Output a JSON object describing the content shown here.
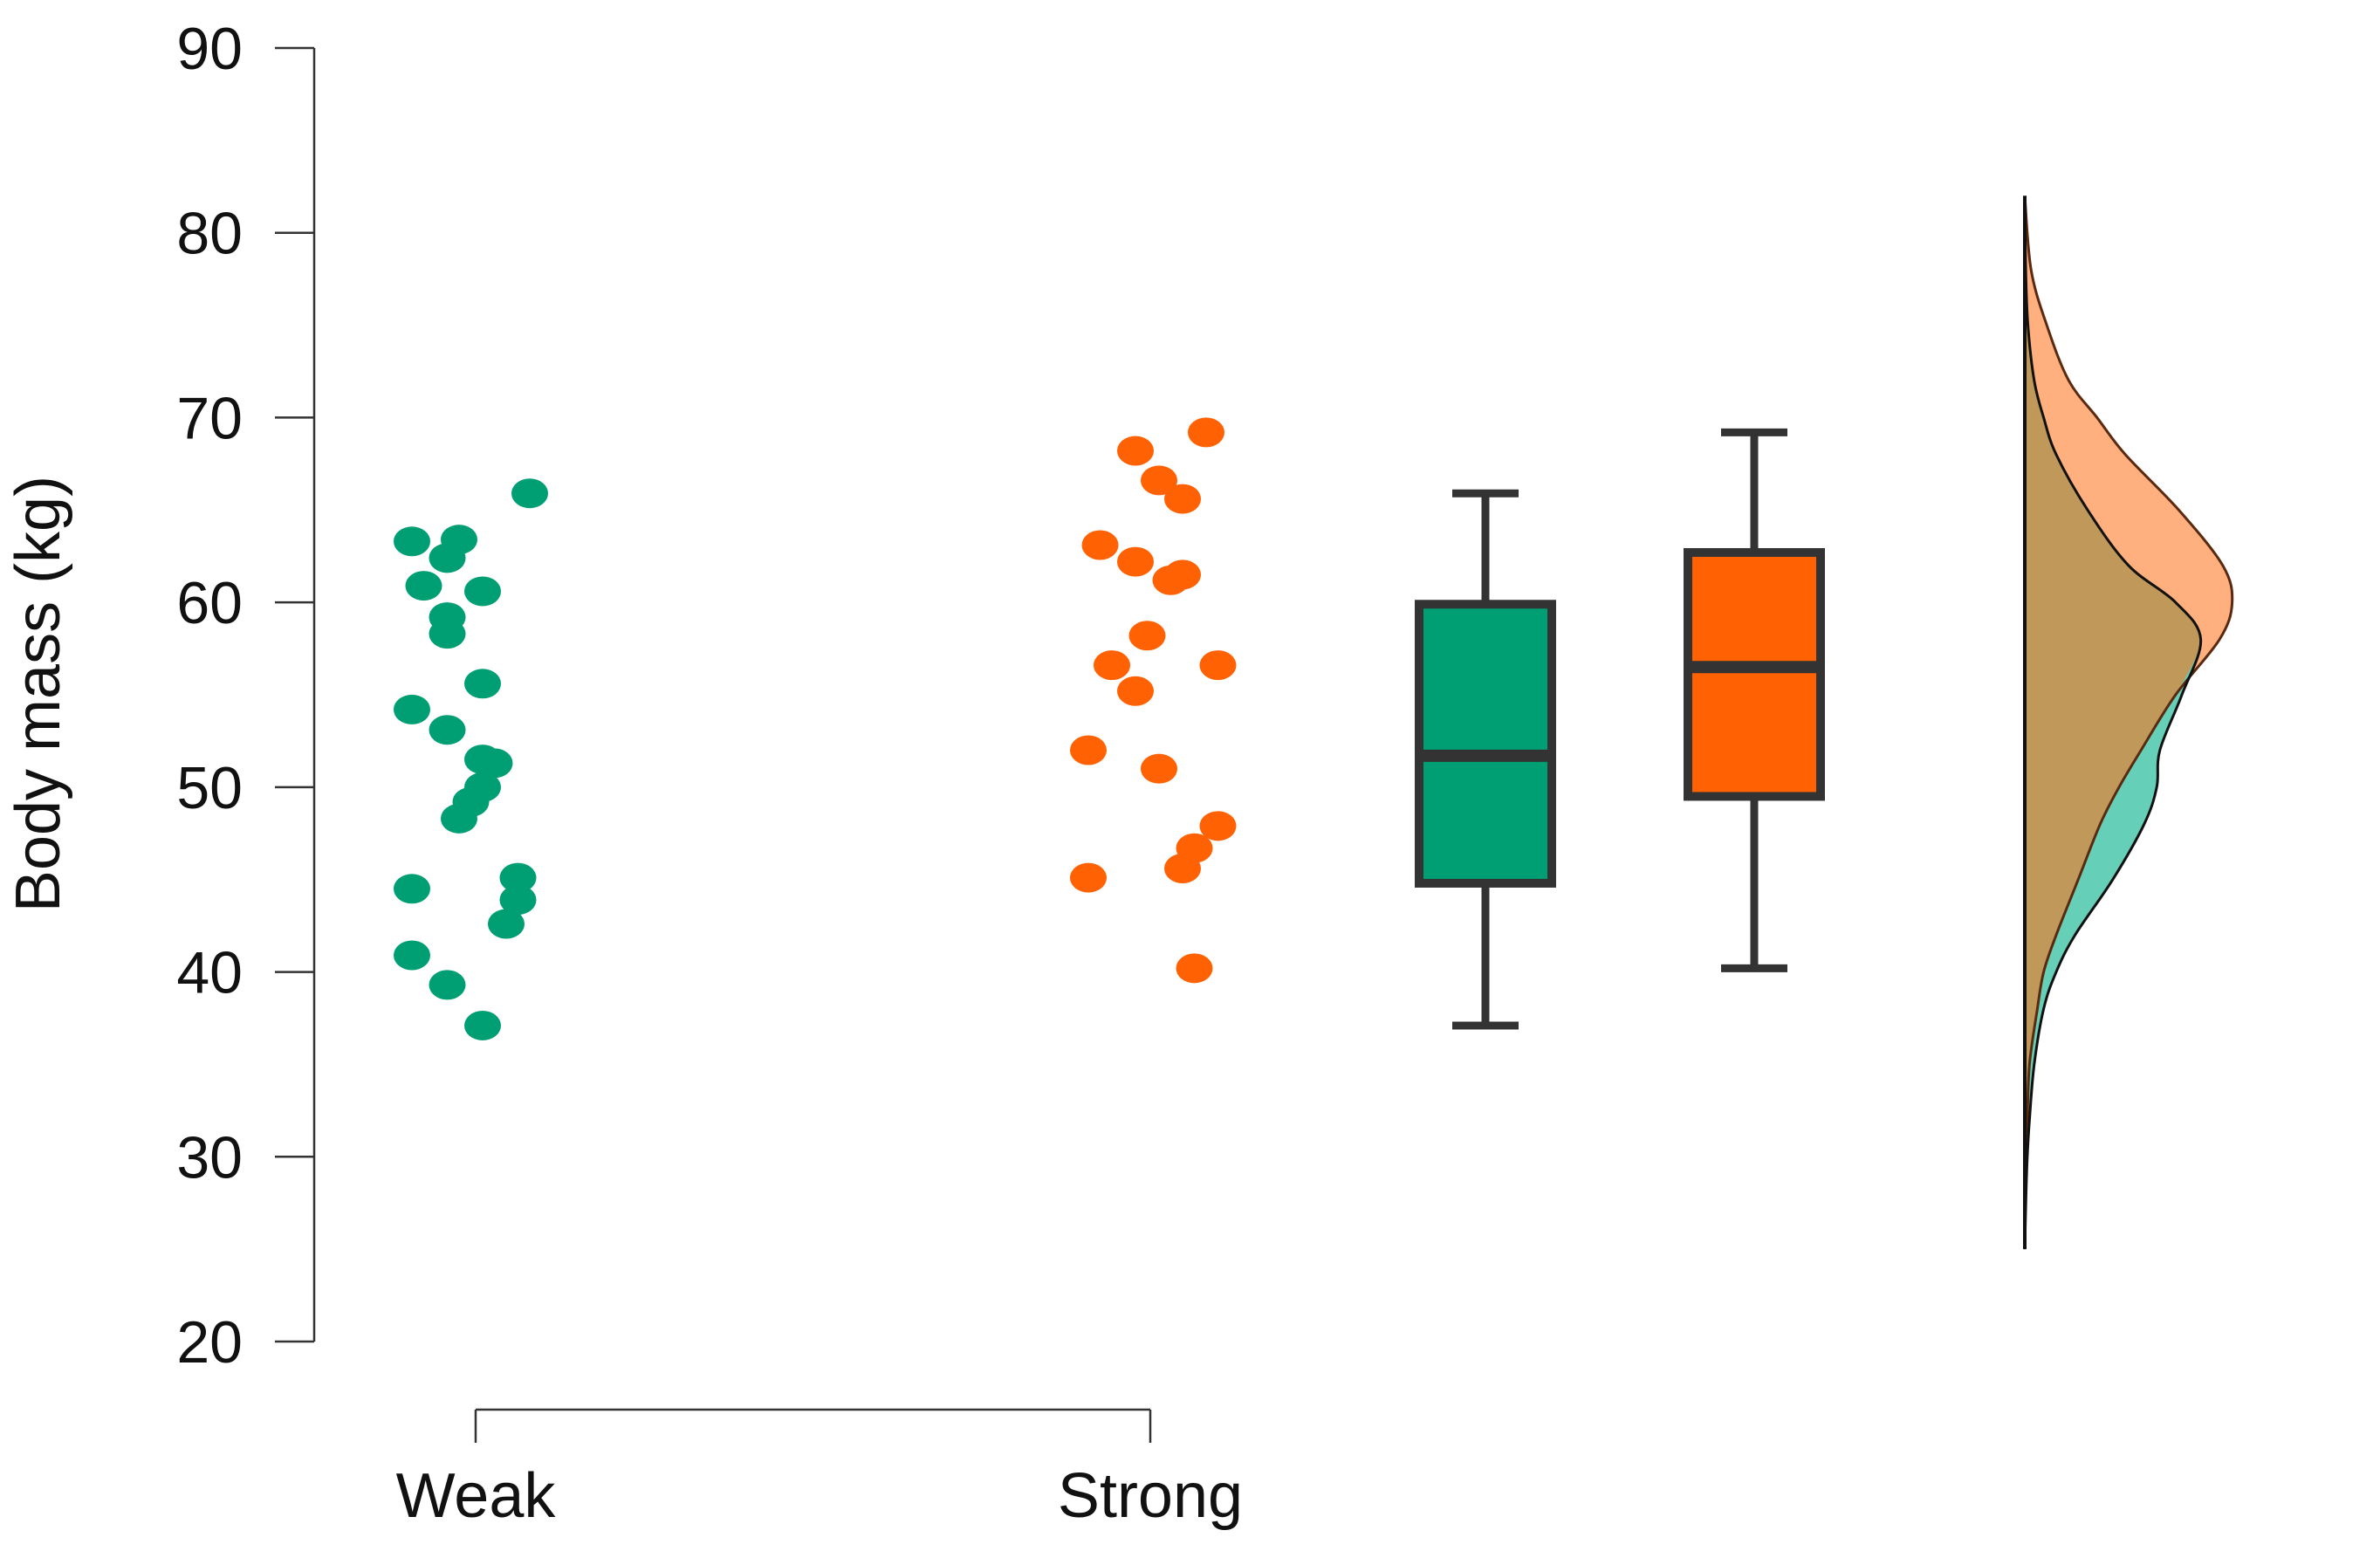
{
  "chart_data": {
    "type": "raincloud",
    "ylabel": "Body mass (kg)",
    "ylim": [
      20,
      90
    ],
    "yticks": [
      20,
      30,
      40,
      50,
      60,
      70,
      80,
      90
    ],
    "categories": [
      "Weak",
      "Strong"
    ],
    "grid": false,
    "colors": {
      "Weak": "#009E73",
      "Strong": "#FF6103",
      "Weak_density": "#66CFB8",
      "Strong_density": "#FFB07E",
      "Overlap_density": "#BF985A",
      "box_outline": "#333333"
    },
    "series": [
      {
        "category": "Weak",
        "points": [
          {
            "x": 0.0,
            "y": 63.3
          },
          {
            "x": 0.04,
            "y": 63.4
          },
          {
            "x": 0.03,
            "y": 62.4
          },
          {
            "x": 0.1,
            "y": 65.9
          },
          {
            "x": 0.01,
            "y": 60.9
          },
          {
            "x": 0.06,
            "y": 60.6
          },
          {
            "x": 0.03,
            "y": 59.2
          },
          {
            "x": 0.03,
            "y": 58.3
          },
          {
            "x": 0.06,
            "y": 55.6
          },
          {
            "x": 0.0,
            "y": 54.2
          },
          {
            "x": 0.03,
            "y": 53.1
          },
          {
            "x": 0.06,
            "y": 51.5
          },
          {
            "x": 0.07,
            "y": 51.3
          },
          {
            "x": 0.06,
            "y": 50.0
          },
          {
            "x": 0.05,
            "y": 49.2
          },
          {
            "x": 0.04,
            "y": 48.3
          },
          {
            "x": 0.09,
            "y": 45.1
          },
          {
            "x": 0.0,
            "y": 44.5
          },
          {
            "x": 0.09,
            "y": 43.9
          },
          {
            "x": 0.08,
            "y": 42.6
          },
          {
            "x": 0.0,
            "y": 40.9
          },
          {
            "x": 0.03,
            "y": 39.3
          },
          {
            "x": 0.06,
            "y": 37.1
          }
        ],
        "box": {
          "min": 37.1,
          "q1": 44.8,
          "median": 51.7,
          "q3": 59.9,
          "max": 65.9
        }
      },
      {
        "category": "Strong",
        "points": [
          {
            "x": 0.1,
            "y": 69.2
          },
          {
            "x": 0.04,
            "y": 68.2
          },
          {
            "x": 0.06,
            "y": 66.6
          },
          {
            "x": 0.08,
            "y": 65.6
          },
          {
            "x": 0.01,
            "y": 63.1
          },
          {
            "x": 0.04,
            "y": 62.2
          },
          {
            "x": 0.07,
            "y": 61.2
          },
          {
            "x": 0.08,
            "y": 61.5
          },
          {
            "x": 0.05,
            "y": 58.2
          },
          {
            "x": 0.02,
            "y": 56.6
          },
          {
            "x": 0.11,
            "y": 56.6
          },
          {
            "x": 0.04,
            "y": 55.2
          },
          {
            "x": 0.0,
            "y": 52.0
          },
          {
            "x": 0.06,
            "y": 51.0
          },
          {
            "x": 0.11,
            "y": 47.9
          },
          {
            "x": 0.09,
            "y": 46.7
          },
          {
            "x": 0.08,
            "y": 45.6
          },
          {
            "x": 0.0,
            "y": 45.1
          },
          {
            "x": 0.09,
            "y": 40.2
          }
        ],
        "box": {
          "min": 40.2,
          "q1": 49.5,
          "median": 56.5,
          "q3": 62.7,
          "max": 69.2
        }
      }
    ],
    "density": [
      {
        "category": "Weak",
        "y": [
          25,
          28,
          30,
          32,
          35,
          38,
          40,
          42,
          45,
          48,
          50,
          52,
          55,
          58,
          60,
          62,
          65,
          68,
          70,
          72,
          75,
          78,
          82
        ],
        "d": [
          0.0,
          0.004,
          0.008,
          0.015,
          0.03,
          0.06,
          0.1,
          0.16,
          0.28,
          0.38,
          0.42,
          0.43,
          0.5,
          0.56,
          0.48,
          0.33,
          0.2,
          0.1,
          0.06,
          0.03,
          0.01,
          0.003,
          0.0
        ]
      },
      {
        "category": "Strong",
        "y": [
          25,
          28,
          30,
          32,
          35,
          38,
          40,
          42,
          45,
          48,
          50,
          52,
          55,
          58,
          60,
          62,
          65,
          68,
          70,
          72,
          75,
          78,
          82
        ],
        "d": [
          0.0,
          0.001,
          0.003,
          0.008,
          0.015,
          0.04,
          0.06,
          0.1,
          0.17,
          0.24,
          0.3,
          0.37,
          0.48,
          0.62,
          0.66,
          0.63,
          0.49,
          0.32,
          0.23,
          0.14,
          0.07,
          0.02,
          0.0
        ]
      }
    ]
  }
}
